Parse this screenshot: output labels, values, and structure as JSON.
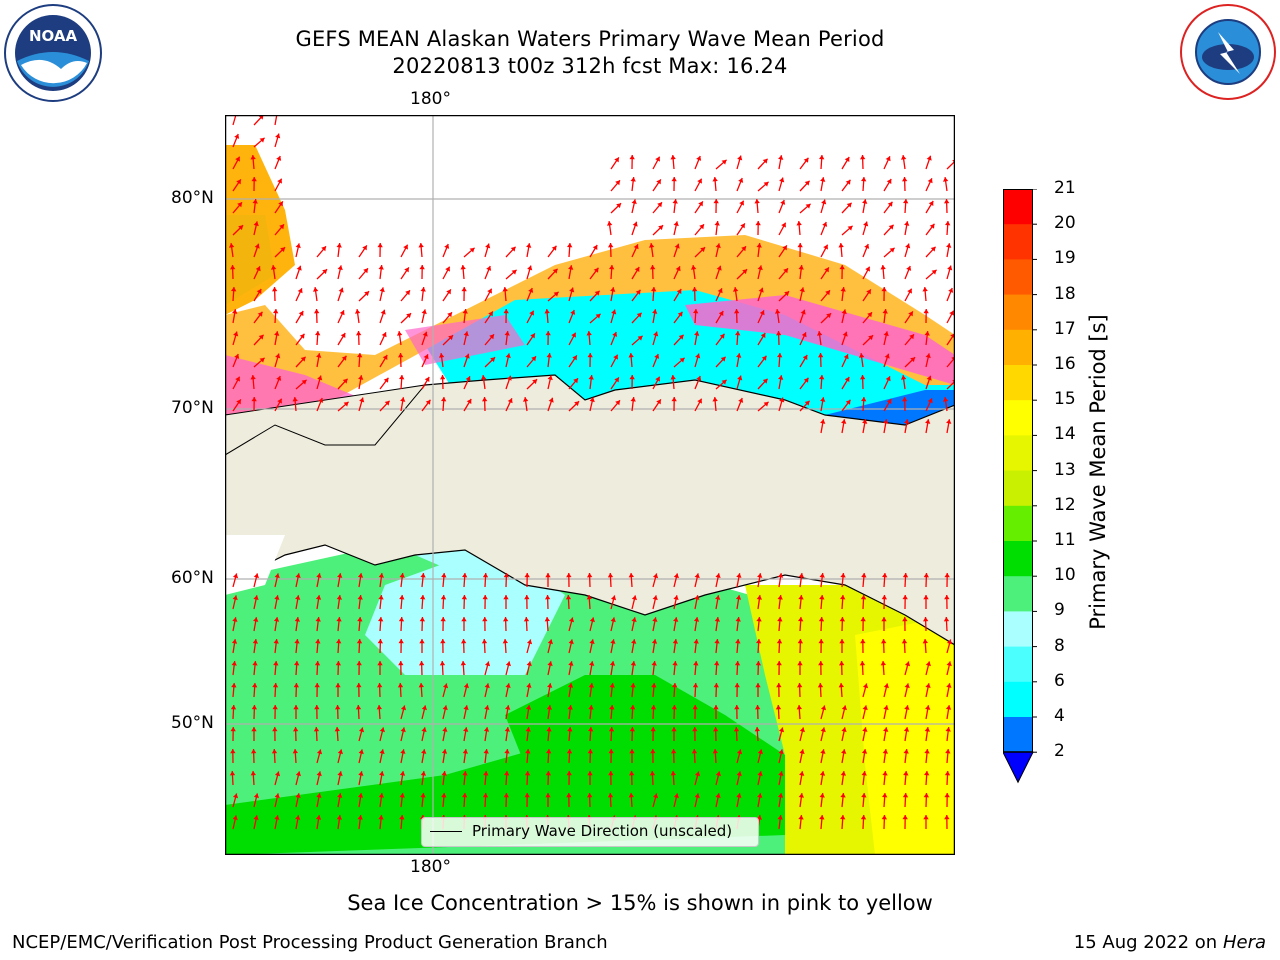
{
  "header": {
    "title_line1": "GEFS MEAN Alaskan Waters Primary Wave Mean Period",
    "title_line2": "20220813 t00z 312h fcst   Max: 16.24"
  },
  "logos": {
    "left": {
      "text": "NOAA"
    },
    "right": {
      "text": "NATIONAL WEATHER SERVICE"
    }
  },
  "map": {
    "lon_top_label": "180°",
    "lon_bottom_label": "180°",
    "lat_labels": [
      "80°N",
      "70°N",
      "60°N",
      "50°N"
    ],
    "legend_label": "Primary Wave Direction (unscaled)",
    "colors": {
      "land": "#eeecdc",
      "arrow": "#ff0000",
      "gridline": "#b0b0b0"
    }
  },
  "colorbar": {
    "title": "Primary Wave Mean Period [s]",
    "tick_labels": [
      "21",
      "20",
      "19",
      "18",
      "17",
      "16",
      "15",
      "14",
      "13",
      "12",
      "11",
      "10",
      "9",
      "8",
      "6",
      "4",
      "2"
    ],
    "bins": [
      {
        "from": 20,
        "to": 21,
        "color": "#ff0000"
      },
      {
        "from": 19,
        "to": 20,
        "color": "#ff3300"
      },
      {
        "from": 18,
        "to": 19,
        "color": "#ff5a00"
      },
      {
        "from": 17,
        "to": 18,
        "color": "#ff8800"
      },
      {
        "from": 16,
        "to": 17,
        "color": "#ffb000"
      },
      {
        "from": 15,
        "to": 16,
        "color": "#ffd800"
      },
      {
        "from": 14,
        "to": 15,
        "color": "#ffff00"
      },
      {
        "from": 13,
        "to": 14,
        "color": "#e6f500"
      },
      {
        "from": 12,
        "to": 13,
        "color": "#c8f000"
      },
      {
        "from": 11,
        "to": 12,
        "color": "#66ee00"
      },
      {
        "from": 10,
        "to": 11,
        "color": "#00dd00"
      },
      {
        "from": 9,
        "to": 10,
        "color": "#4cf07a"
      },
      {
        "from": 8,
        "to": 9,
        "color": "#aaffff"
      },
      {
        "from": 6,
        "to": 8,
        "color": "#4cffff"
      },
      {
        "from": 4,
        "to": 6,
        "color": "#00ffff"
      },
      {
        "from": 2,
        "to": 4,
        "color": "#0077ff"
      }
    ],
    "extend_color": "#0000ff"
  },
  "caption": "Sea Ice Concentration > 15% is shown in pink to yellow",
  "footer": {
    "left": "NCEP/EMC/Verification Post Processing Product Generation Branch",
    "right_date": "15 Aug 2022 on",
    "right_host": "Hera"
  }
}
